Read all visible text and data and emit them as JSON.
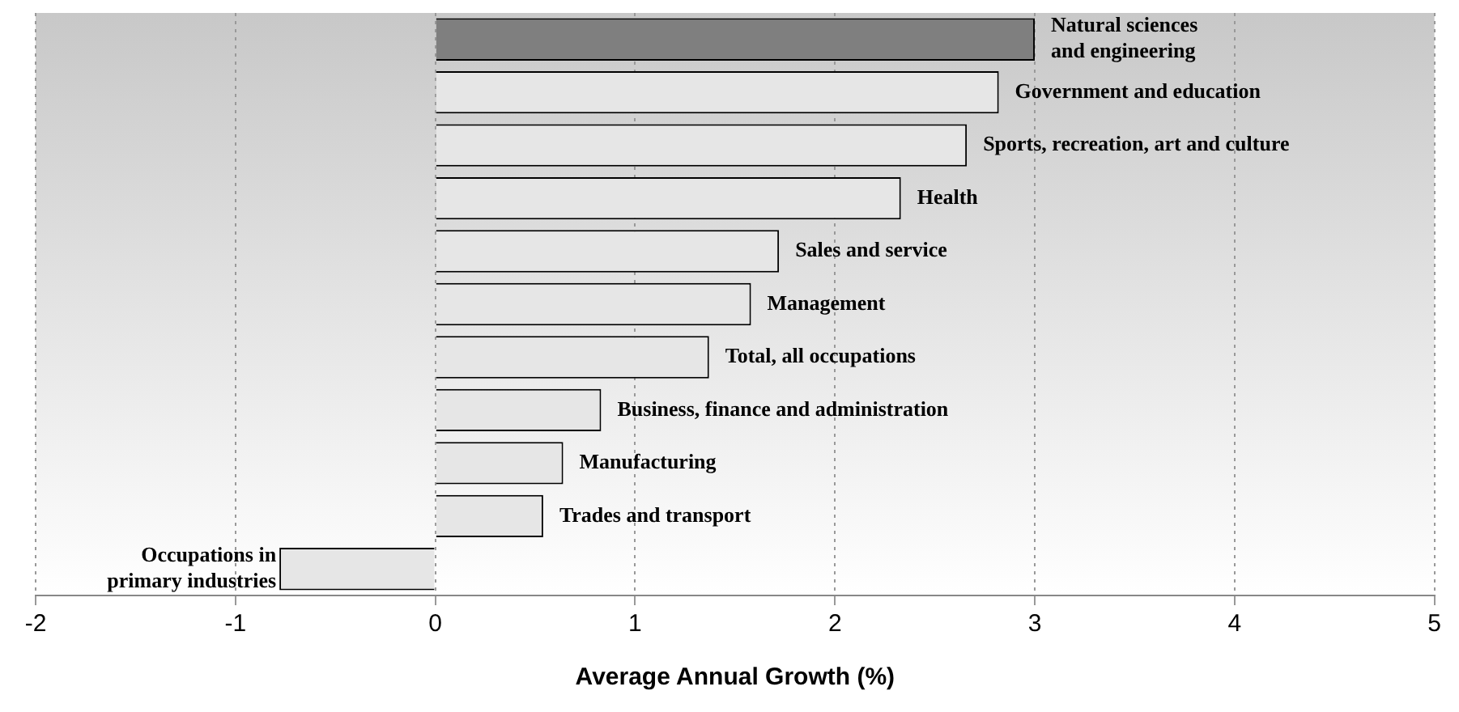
{
  "chart_data": {
    "type": "bar",
    "orientation": "horizontal",
    "xlabel": "Average Annual Growth (%)",
    "categories": [
      "Natural sciences\nand engineering",
      "Government and education",
      "Sports, recreation, art and culture",
      "Health",
      "Sales and service",
      "Management",
      "Total, all occupations",
      "Business, finance and administration",
      "Manufacturing",
      "Trades and transport",
      "Occupations in\nprimary industries"
    ],
    "values": [
      3.0,
      2.82,
      2.66,
      2.33,
      1.72,
      1.58,
      1.37,
      0.83,
      0.64,
      0.54,
      -0.78
    ],
    "colors": [
      "#7f7f7f",
      "#e6e6e6",
      "#e6e6e6",
      "#e6e6e6",
      "#e6e6e6",
      "#e6e6e6",
      "#e6e6e6",
      "#e6e6e6",
      "#e6e6e6",
      "#e6e6e6",
      "#e6e6e6"
    ],
    "xlim": [
      -2,
      5
    ],
    "xticks": [
      -2,
      -1,
      0,
      1,
      2,
      3,
      4,
      5
    ],
    "grid": "x",
    "tick_labels": "x",
    "legend": false
  }
}
